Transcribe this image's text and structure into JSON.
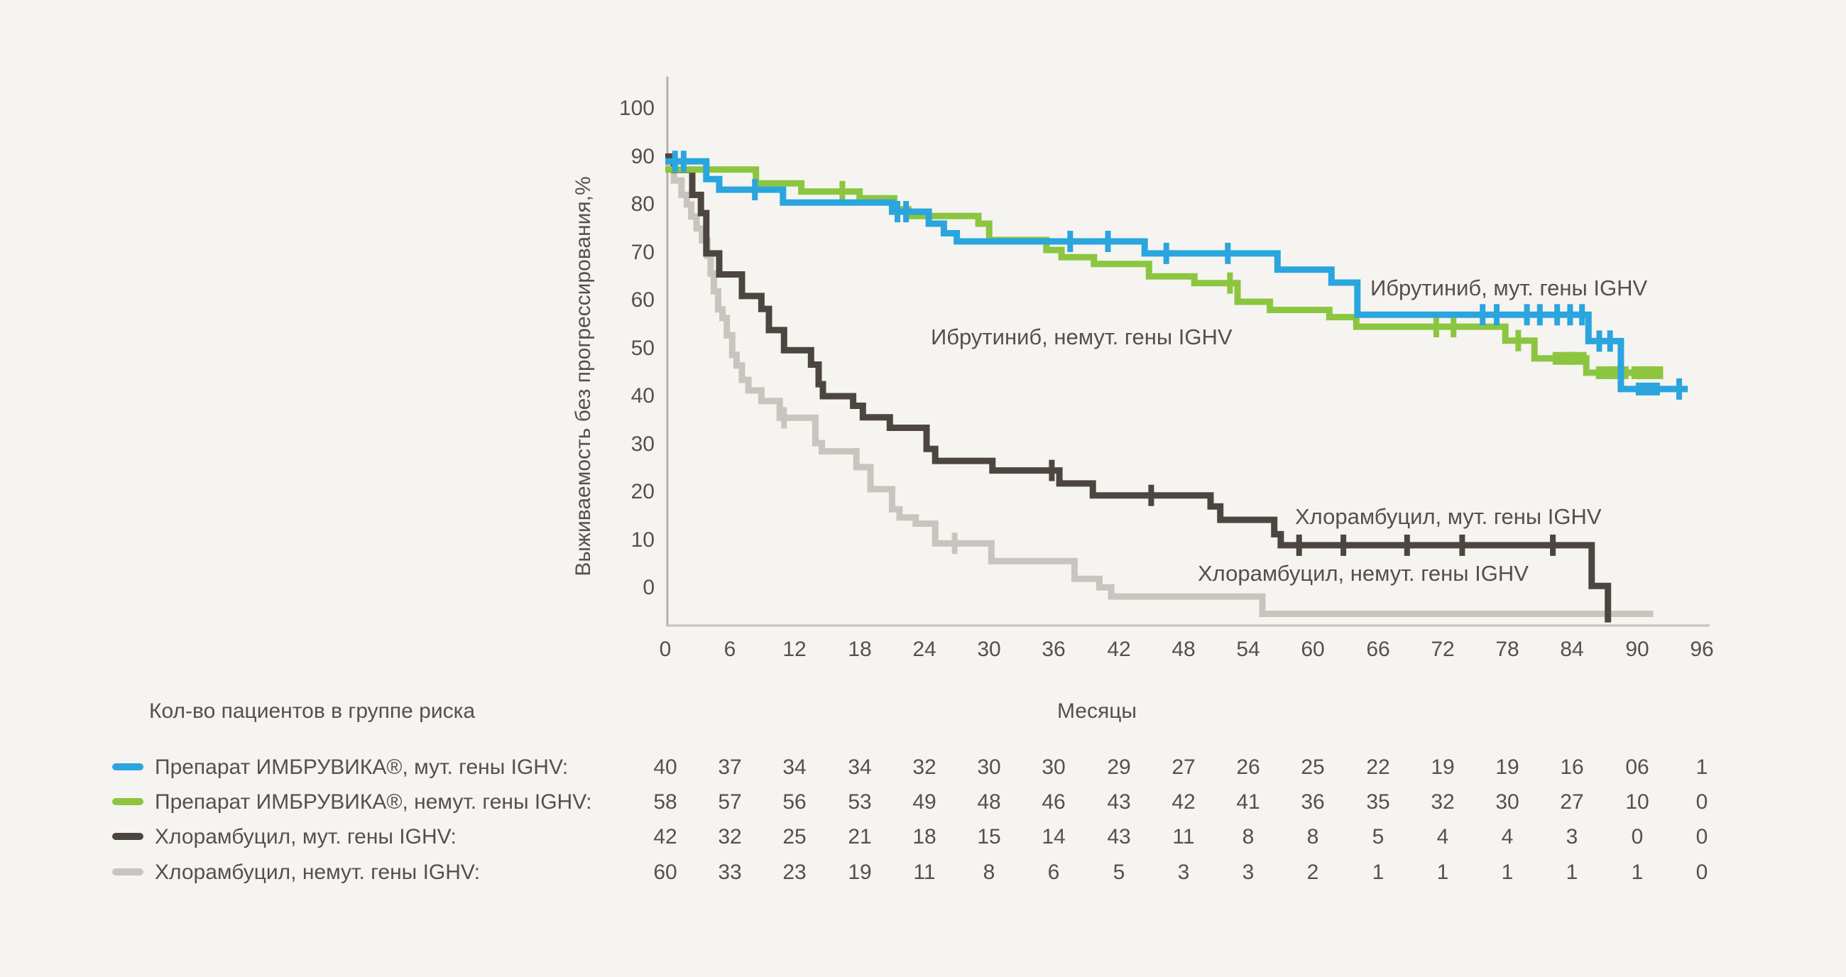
{
  "chart_data": {
    "type": "line",
    "subtype": "kaplan-meier-step",
    "title": "",
    "ylabel": "Выживаемость без прогрессирования,%",
    "xlabel": "Месяцы",
    "xlim": [
      0,
      96
    ],
    "ylim": [
      0,
      100
    ],
    "x_ticks": [
      0,
      6,
      12,
      18,
      24,
      30,
      36,
      42,
      48,
      54,
      60,
      66,
      72,
      78,
      84,
      90,
      96
    ],
    "y_ticks": [
      100,
      90,
      80,
      70,
      60,
      50,
      40,
      30,
      20,
      10,
      0
    ],
    "grid": "off",
    "axis_color": "#b7b1aa",
    "series": [
      {
        "key": "ibrutinib-mutated",
        "name": "Ибрутиниб, мут. гены IGHV",
        "color": "#2aa5de",
        "steps": [
          [
            0,
            89
          ],
          [
            3.8,
            85.3
          ],
          [
            5,
            83.1
          ],
          [
            10.9,
            80.4
          ],
          [
            21,
            78.5
          ],
          [
            24.4,
            76
          ],
          [
            25.8,
            74
          ],
          [
            27,
            72.3
          ],
          [
            44.4,
            69.8
          ],
          [
            56.7,
            66.4
          ],
          [
            61.7,
            63.7
          ],
          [
            64.1,
            57
          ],
          [
            85.5,
            51.5
          ],
          [
            88.5,
            41.5
          ]
        ],
        "end": 94.7,
        "censors": [
          [
            0.9,
            89
          ],
          [
            1.7,
            89
          ],
          [
            8.3,
            83.1
          ],
          [
            21.5,
            78.5
          ],
          [
            22.3,
            78.5
          ],
          [
            37.5,
            72.3
          ],
          [
            41,
            72.3
          ],
          [
            46.4,
            69.8
          ],
          [
            52.1,
            69.8
          ],
          [
            75.7,
            57
          ],
          [
            77,
            57
          ],
          [
            79.8,
            57
          ],
          [
            81,
            57
          ],
          [
            82.6,
            57
          ],
          [
            83.8,
            57
          ],
          [
            84.9,
            57
          ],
          [
            86.5,
            51.5
          ],
          [
            87.5,
            51.5
          ],
          [
            93.9,
            41.5
          ]
        ],
        "wide_censors": [
          [
            91,
            41.5
          ]
        ]
      },
      {
        "key": "ibrutinib-unmutated",
        "name": "Ибрутиниб, немут. гены IGHV",
        "color": "#8cc540",
        "steps": [
          [
            0,
            87.3
          ],
          [
            8.4,
            84.4
          ],
          [
            12.6,
            82.7
          ],
          [
            18,
            81.3
          ],
          [
            21.2,
            79
          ],
          [
            22.5,
            77.6
          ],
          [
            29,
            76
          ],
          [
            30,
            72.6
          ],
          [
            35.3,
            70.5
          ],
          [
            36.7,
            69
          ],
          [
            39.7,
            67.6
          ],
          [
            44.8,
            65
          ],
          [
            49,
            63.6
          ],
          [
            53,
            59.7
          ],
          [
            56,
            58
          ],
          [
            61.5,
            56.5
          ],
          [
            64,
            54.5
          ],
          [
            77.8,
            51.6
          ],
          [
            80.5,
            47.9
          ],
          [
            85.3,
            44.9
          ]
        ],
        "end": 91.6,
        "censors": [
          [
            16.4,
            82.7
          ],
          [
            52.3,
            63.6
          ],
          [
            71.4,
            54.5
          ],
          [
            73,
            54.5
          ],
          [
            79,
            51.6
          ]
        ],
        "wide_censors": [
          [
            83.3,
            47.9
          ],
          [
            84.2,
            47.9
          ],
          [
            87.3,
            44.9
          ],
          [
            88.1,
            44.9
          ],
          [
            90.6,
            44.9
          ],
          [
            91.3,
            44.9
          ]
        ]
      },
      {
        "key": "chlorambucil-mutated",
        "name": "Хлорамбуцил, мут. гены IGHV",
        "color": "#4c4540",
        "steps": [
          [
            0,
            90
          ],
          [
            0.8,
            87.2
          ],
          [
            2.5,
            82
          ],
          [
            3.3,
            78.2
          ],
          [
            3.8,
            69.8
          ],
          [
            5,
            65.4
          ],
          [
            7.1,
            60.9
          ],
          [
            8.9,
            58.2
          ],
          [
            9.6,
            53.8
          ],
          [
            11,
            49.6
          ],
          [
            13.5,
            46.6
          ],
          [
            14.2,
            42.5
          ],
          [
            14.6,
            40
          ],
          [
            17.4,
            38
          ],
          [
            18.3,
            35.6
          ],
          [
            20.8,
            33.4
          ],
          [
            24.2,
            29
          ],
          [
            25,
            26.5
          ],
          [
            30.3,
            24.5
          ],
          [
            36.5,
            21.8
          ],
          [
            39.6,
            19.3
          ],
          [
            50.5,
            17
          ],
          [
            51.4,
            14.2
          ],
          [
            56.4,
            11.2
          ],
          [
            57,
            8.9
          ],
          [
            85.8,
            0.4
          ],
          [
            87.3,
            -7.2
          ]
        ],
        "end": 87.3,
        "censors": [
          [
            35.8,
            24.5
          ],
          [
            45,
            19.3
          ],
          [
            58.7,
            8.9
          ],
          [
            62.8,
            8.9
          ],
          [
            68.7,
            8.9
          ],
          [
            73.8,
            8.9
          ],
          [
            82.2,
            8.9
          ]
        ],
        "wide_censors": []
      },
      {
        "key": "chlorambucil-unmutated",
        "name": "Хлорамбуцил, немут. гены IGHV",
        "color": "#c9c4bd",
        "steps": [
          [
            0,
            88
          ],
          [
            0.8,
            85
          ],
          [
            1.5,
            82
          ],
          [
            2,
            80
          ],
          [
            2.4,
            77.5
          ],
          [
            2.9,
            75
          ],
          [
            3.4,
            72.5
          ],
          [
            3.9,
            69.3
          ],
          [
            4.2,
            65.6
          ],
          [
            4.5,
            61.9
          ],
          [
            4.9,
            58.1
          ],
          [
            5.3,
            56.3
          ],
          [
            5.7,
            52.7
          ],
          [
            6.2,
            48.6
          ],
          [
            6.6,
            46.4
          ],
          [
            7.1,
            43.4
          ],
          [
            7.7,
            41.2
          ],
          [
            8.9,
            39
          ],
          [
            10.6,
            35.5
          ],
          [
            13.9,
            30.2
          ],
          [
            14.5,
            28.5
          ],
          [
            17.7,
            25.2
          ],
          [
            19,
            20.6
          ],
          [
            21,
            16.4
          ],
          [
            21.7,
            14.7
          ],
          [
            23.2,
            13.4
          ],
          [
            25,
            9.3
          ],
          [
            30.2,
            5.6
          ],
          [
            37.9,
            1.9
          ],
          [
            40.2,
            0.1
          ],
          [
            41.3,
            -1.8
          ],
          [
            55.3,
            -5.4
          ]
        ],
        "end": 91.5,
        "censors": [
          [
            11,
            35.5
          ],
          [
            26.8,
            9.3
          ]
        ],
        "wide_censors": []
      }
    ],
    "curve_labels": [
      {
        "text": "Ибрутиниб, мут. гены IGHV",
        "month": 65.3,
        "pct": 62.5
      },
      {
        "text": "Ибрутиниб, немут. гены IGHV",
        "month": 24.6,
        "pct": 52.3
      },
      {
        "text": "Хлорамбуцил, мут. гены IGHV",
        "month": 58.3,
        "pct": 14.8
      },
      {
        "text": "Хлорамбуцил, немут. гены IGHV",
        "month": 49.3,
        "pct": 3.0
      }
    ]
  },
  "risk_table": {
    "title": "Кол-во пациентов в группе риска",
    "x_axis_label": "Месяцы",
    "columns_months": [
      0,
      6,
      12,
      18,
      24,
      30,
      36,
      42,
      48,
      54,
      60,
      66,
      72,
      78,
      84,
      90,
      96
    ],
    "rows": [
      {
        "label": "Препарат ИМБРУВИКА®, мут. гены IGHV:",
        "color": "#2aa5de",
        "values": [
          "40",
          "37",
          "34",
          "34",
          "32",
          "30",
          "30",
          "29",
          "27",
          "26",
          "25",
          "22",
          "19",
          "19",
          "16",
          "06",
          "1"
        ]
      },
      {
        "label": "Препарат ИМБРУВИКА®, немут. гены IGHV:",
        "color": "#8cc540",
        "values": [
          "58",
          "57",
          "56",
          "53",
          "49",
          "48",
          "46",
          "43",
          "42",
          "41",
          "36",
          "35",
          "32",
          "30",
          "27",
          "10",
          "0"
        ]
      },
      {
        "label": "Хлорамбуцил, мут. гены IGHV:",
        "color": "#4c4540",
        "values": [
          "42",
          "32",
          "25",
          "21",
          "18",
          "15",
          "14",
          "43",
          "11",
          "8",
          "8",
          "5",
          "4",
          "4",
          "3",
          "0",
          "0"
        ]
      },
      {
        "label": "Хлорамбуцил, немут. гены IGHV:",
        "color": "#c9c4bd",
        "values": [
          "60",
          "33",
          "23",
          "19",
          "11",
          "8",
          "6",
          "5",
          "3",
          "3",
          "2",
          "1",
          "1",
          "1",
          "1",
          "1",
          "0"
        ]
      }
    ]
  },
  "colors": {
    "background": "#f5f4f1",
    "text": "#56504a",
    "y_axis_line": "#b5afa8",
    "x_axis_line": "#c7c2bb"
  }
}
